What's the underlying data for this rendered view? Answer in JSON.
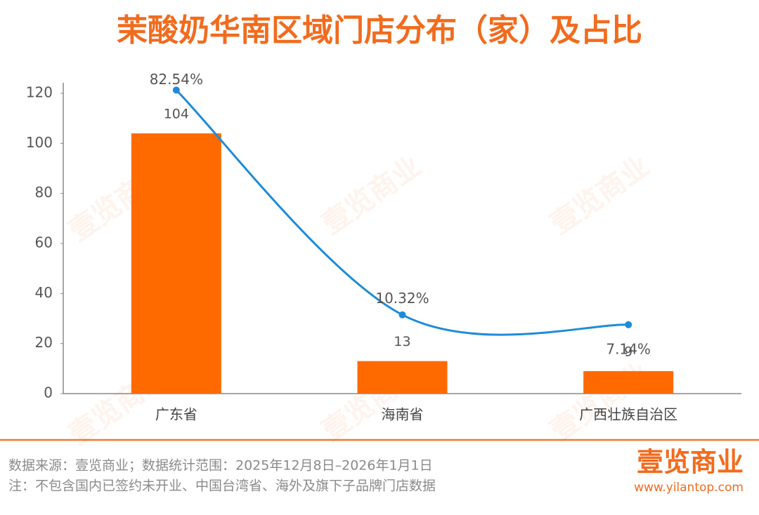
{
  "chart_data": {
    "type": "bar",
    "title": "茉酸奶华南区域门店分布（家）及占比",
    "categories": [
      "广东省",
      "海南省",
      "广西壮族自治区"
    ],
    "series": [
      {
        "type": "bar",
        "color": "#ff6a00",
        "values": [
          104,
          13,
          9
        ]
      },
      {
        "type": "line",
        "axis": "y2",
        "color": "#1e8bd8",
        "values": [
          82.54,
          10.32,
          7.14
        ],
        "value_labels": [
          "82.54%",
          "10.32%",
          "7.14%"
        ]
      }
    ],
    "ylim": [
      0,
      120
    ],
    "yticks": [
      0,
      20,
      40,
      60,
      80,
      100,
      120
    ],
    "y2lim": [
      -15,
      81.5
    ],
    "grid": false
  },
  "watermark": "壹览商业",
  "footer": {
    "source": "数据来源：壹览商业；数据统计范围：2025年12月8日–2026年1月1日",
    "note": "注：不包含国内已签约未开业、中国台湾省、海外及旗下子品牌门店数据"
  },
  "logo": {
    "name": "壹览商业",
    "url": "www.yilantop.com"
  }
}
